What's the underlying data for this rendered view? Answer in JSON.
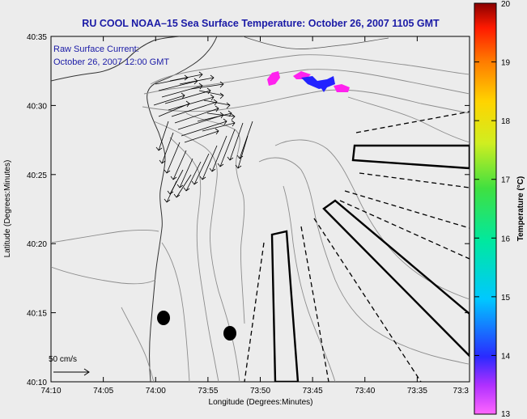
{
  "title": "RU COOL  NOAA–15  Sea Surface Temperature:  October 26, 2007 1105 GMT",
  "current_label_line1": "Raw Surface Current:",
  "current_label_line2": "October 26, 2007 12:00 GMT",
  "scale_label": "50 cm/s",
  "x_axis": {
    "label": "Longitude (Degrees:Minutes)",
    "ticks": [
      "74:10",
      "74:05",
      "74:00",
      "73:55",
      "73:50",
      "73:45",
      "73:40",
      "73:35",
      "73:3"
    ]
  },
  "y_axis": {
    "label": "Latitude (Degrees:Minutes)",
    "ticks": [
      "40:35",
      "40:30",
      "40:25",
      "40:20",
      "40:15",
      "40:10"
    ]
  },
  "colorbar": {
    "label": "Temperature (°C)",
    "ticks": [
      "20",
      "19",
      "18",
      "17",
      "16",
      "15",
      "14",
      "13"
    ],
    "range": [
      13,
      20
    ]
  },
  "colors": {
    "title": "#1a1aa6",
    "map_background": "#ececec",
    "contour": "#8c8c8c",
    "sst_patch_magenta": "#ff22ee",
    "sst_patch_blue": "#2222ff"
  }
}
